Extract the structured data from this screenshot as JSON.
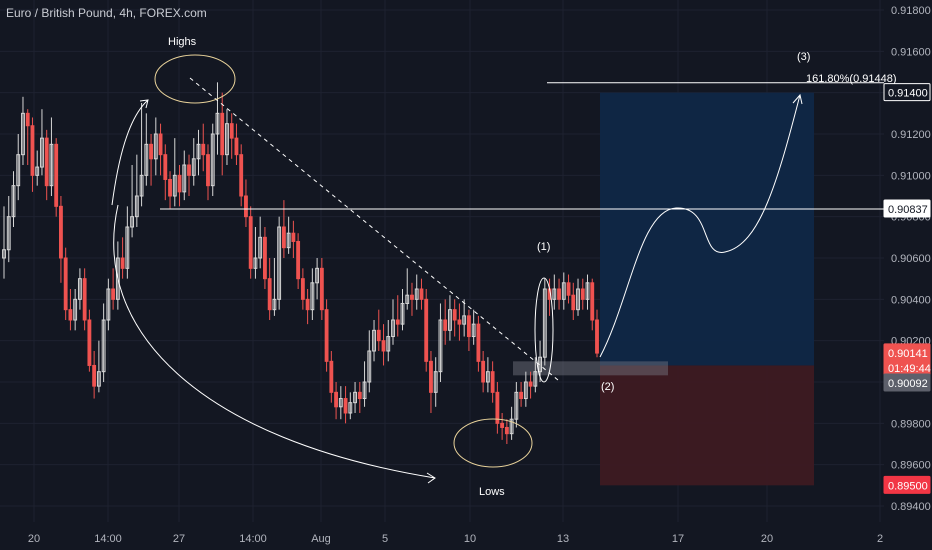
{
  "header": {
    "title": "Euro / British Pound, 4h, FOREX.com"
  },
  "colors": {
    "background": "#131722",
    "grid": "#1e2230",
    "up": "#d6d6d6",
    "down": "#ef5350",
    "target_zone": "#0f2747",
    "stop_zone": "#3d1a22",
    "annotation": "#ffffff",
    "axis_text": "#b2b5be"
  },
  "annotations": {
    "highs": "Highs",
    "lows": "Lows",
    "label1": "(1)",
    "label2": "(2)",
    "label3": "(3)",
    "fib_label": "161.80%(0.91448)"
  },
  "chart_data": {
    "type": "candlestick",
    "symbol": "Euro / British Pound",
    "interval": "4h",
    "source": "FOREX.com",
    "ylim": [
      0.893,
      0.9185
    ],
    "y_ticks": [
      "0.91800",
      "0.91600",
      "0.91400",
      "0.91200",
      "0.91000",
      "0.90800",
      "0.90600",
      "0.90400",
      "0.90200",
      "0.90000",
      "0.89800",
      "0.89600",
      "0.89400"
    ],
    "x_ticks": [
      "20",
      "14:00",
      "27",
      "14:00",
      "Aug",
      "5",
      "10",
      "13",
      "17",
      "20",
      "2"
    ],
    "price_badges": [
      {
        "label": "0.91400",
        "bg": "#131722",
        "border": "#ffffff",
        "fg": "#ffffff",
        "value": 0.914
      },
      {
        "label": "0.90837",
        "bg": "#ffffff",
        "border": "#ffffff",
        "fg": "#131722",
        "value": 0.90837
      },
      {
        "label": "0.90141",
        "bg": "#ef5350",
        "border": "#ef5350",
        "fg": "#ffffff",
        "value": 0.90141
      },
      {
        "label": "01:49:44",
        "bg": "#ef5350",
        "border": "#ef5350",
        "fg": "#ffffff",
        "value": 0.90068
      },
      {
        "label": "0.90092",
        "bg": "#5d606b",
        "border": "#5d606b",
        "fg": "#ffffff",
        "value": 0.89995
      },
      {
        "label": "0.89500",
        "bg": "#f23645",
        "border": "#f23645",
        "fg": "#ffffff",
        "value": 0.895
      }
    ],
    "levels": {
      "resistance": 0.90837,
      "fib_161_8": 0.91448,
      "target": 0.914,
      "entry": 0.90092,
      "stop": 0.895
    },
    "candles": [
      [
        0.906,
        0.9064,
        0.9085,
        0.905
      ],
      [
        0.9064,
        0.908,
        0.909,
        0.9058
      ],
      [
        0.908,
        0.9095,
        0.9102,
        0.9075
      ],
      [
        0.9095,
        0.911,
        0.912,
        0.9088
      ],
      [
        0.911,
        0.913,
        0.9138,
        0.9105
      ],
      [
        0.913,
        0.9124,
        0.9132,
        0.9105
      ],
      [
        0.9124,
        0.91,
        0.9128,
        0.9092
      ],
      [
        0.91,
        0.9104,
        0.9112,
        0.9095
      ],
      [
        0.9104,
        0.9118,
        0.9132,
        0.91
      ],
      [
        0.9118,
        0.9095,
        0.9122,
        0.9088
      ],
      [
        0.9095,
        0.9115,
        0.9128,
        0.909
      ],
      [
        0.9115,
        0.9085,
        0.9118,
        0.908
      ],
      [
        0.9085,
        0.906,
        0.909,
        0.9048
      ],
      [
        0.906,
        0.9035,
        0.9065,
        0.903
      ],
      [
        0.9035,
        0.903,
        0.9045,
        0.9025
      ],
      [
        0.903,
        0.904,
        0.9045,
        0.9025
      ],
      [
        0.904,
        0.905,
        0.9055,
        0.9035
      ],
      [
        0.905,
        0.903,
        0.9055,
        0.9025
      ],
      [
        0.903,
        0.9008,
        0.9035,
        0.9005
      ],
      [
        0.9008,
        0.8998,
        0.9015,
        0.8992
      ],
      [
        0.8998,
        0.9005,
        0.902,
        0.8995
      ],
      [
        0.9005,
        0.903,
        0.9038,
        0.9
      ],
      [
        0.903,
        0.9045,
        0.905,
        0.9025
      ],
      [
        0.9045,
        0.904,
        0.9055,
        0.9035
      ],
      [
        0.904,
        0.906,
        0.9068,
        0.9035
      ],
      [
        0.906,
        0.9055,
        0.907,
        0.905
      ],
      [
        0.9055,
        0.9075,
        0.9085,
        0.905
      ],
      [
        0.9075,
        0.908,
        0.9105,
        0.907
      ],
      [
        0.908,
        0.909,
        0.911,
        0.9075
      ],
      [
        0.909,
        0.91,
        0.9135,
        0.9085
      ],
      [
        0.91,
        0.9115,
        0.913,
        0.9095
      ],
      [
        0.9115,
        0.9108,
        0.912,
        0.9095
      ],
      [
        0.9108,
        0.912,
        0.9128,
        0.91
      ],
      [
        0.912,
        0.911,
        0.9125,
        0.91
      ],
      [
        0.911,
        0.9098,
        0.9115,
        0.9088
      ],
      [
        0.9098,
        0.909,
        0.9102,
        0.9084
      ],
      [
        0.909,
        0.91,
        0.9118,
        0.9085
      ],
      [
        0.91,
        0.9092,
        0.9105,
        0.9085
      ],
      [
        0.9092,
        0.9105,
        0.9112,
        0.9088
      ],
      [
        0.9105,
        0.91,
        0.911,
        0.909
      ],
      [
        0.91,
        0.9108,
        0.9118,
        0.9095
      ],
      [
        0.9108,
        0.9115,
        0.9122,
        0.91
      ],
      [
        0.9115,
        0.911,
        0.9125,
        0.9102
      ],
      [
        0.911,
        0.9095,
        0.9115,
        0.9088
      ],
      [
        0.9095,
        0.912,
        0.9125,
        0.909
      ],
      [
        0.912,
        0.913,
        0.9145,
        0.911
      ],
      [
        0.913,
        0.911,
        0.914,
        0.91
      ],
      [
        0.911,
        0.9125,
        0.9132,
        0.9105
      ],
      [
        0.9125,
        0.9118,
        0.913,
        0.9108
      ],
      [
        0.9118,
        0.911,
        0.9125,
        0.9105
      ],
      [
        0.911,
        0.909,
        0.9115,
        0.9085
      ],
      [
        0.909,
        0.908,
        0.9098,
        0.9075
      ],
      [
        0.908,
        0.9055,
        0.9085,
        0.905
      ],
      [
        0.9055,
        0.906,
        0.9075,
        0.905
      ],
      [
        0.906,
        0.907,
        0.908,
        0.9055
      ],
      [
        0.907,
        0.905,
        0.9075,
        0.9045
      ],
      [
        0.905,
        0.9035,
        0.906,
        0.903
      ],
      [
        0.9035,
        0.904,
        0.906,
        0.9032
      ],
      [
        0.904,
        0.9075,
        0.908,
        0.9035
      ],
      [
        0.9075,
        0.9065,
        0.9088,
        0.906
      ],
      [
        0.9065,
        0.9072,
        0.908,
        0.9062
      ],
      [
        0.9072,
        0.9068,
        0.9078,
        0.906
      ],
      [
        0.9068,
        0.905,
        0.9072,
        0.9045
      ],
      [
        0.905,
        0.904,
        0.9055,
        0.9035
      ],
      [
        0.904,
        0.9035,
        0.9045,
        0.9028
      ],
      [
        0.9035,
        0.9048,
        0.9055,
        0.903
      ],
      [
        0.9048,
        0.9055,
        0.906,
        0.904
      ],
      [
        0.9055,
        0.9035,
        0.906,
        0.903
      ],
      [
        0.9035,
        0.901,
        0.904,
        0.9005
      ],
      [
        0.901,
        0.8995,
        0.9015,
        0.899
      ],
      [
        0.8995,
        0.8988,
        0.9,
        0.8982
      ],
      [
        0.8988,
        0.8992,
        0.8998,
        0.8982
      ],
      [
        0.8992,
        0.8985,
        0.8998,
        0.898
      ],
      [
        0.8985,
        0.899,
        0.8995,
        0.8982
      ],
      [
        0.899,
        0.8995,
        0.9,
        0.8985
      ],
      [
        0.8995,
        0.8992,
        0.9,
        0.8985
      ],
      [
        0.8992,
        0.9,
        0.901,
        0.8988
      ],
      [
        0.9,
        0.9015,
        0.9025,
        0.8995
      ],
      [
        0.9015,
        0.9025,
        0.903,
        0.901
      ],
      [
        0.9025,
        0.902,
        0.9035,
        0.9015
      ],
      [
        0.902,
        0.9015,
        0.9028,
        0.9008
      ],
      [
        0.9015,
        0.9022,
        0.903,
        0.901
      ],
      [
        0.9022,
        0.903,
        0.904,
        0.9018
      ],
      [
        0.903,
        0.9028,
        0.9042,
        0.9022
      ],
      [
        0.9028,
        0.9038,
        0.9045,
        0.9025
      ],
      [
        0.9038,
        0.9042,
        0.9055,
        0.9035
      ],
      [
        0.9042,
        0.904,
        0.9048,
        0.9032
      ],
      [
        0.904,
        0.9045,
        0.9052,
        0.9035
      ],
      [
        0.9045,
        0.904,
        0.905,
        0.9035
      ],
      [
        0.904,
        0.901,
        0.9045,
        0.9005
      ],
      [
        0.901,
        0.8995,
        0.9015,
        0.8985
      ],
      [
        0.8995,
        0.9005,
        0.9012,
        0.8988
      ],
      [
        0.9005,
        0.903,
        0.9038,
        0.9
      ],
      [
        0.903,
        0.9025,
        0.904,
        0.9018
      ],
      [
        0.9025,
        0.9035,
        0.9042,
        0.902
      ],
      [
        0.9035,
        0.903,
        0.904,
        0.9022
      ],
      [
        0.903,
        0.9028,
        0.9038,
        0.902
      ],
      [
        0.9028,
        0.9032,
        0.904,
        0.9022
      ],
      [
        0.9032,
        0.9022,
        0.9035,
        0.9015
      ],
      [
        0.9022,
        0.9028,
        0.9035,
        0.9018
      ],
      [
        0.9028,
        0.901,
        0.9032,
        0.9005
      ],
      [
        0.901,
        0.9,
        0.9015,
        0.8995
      ],
      [
        0.9,
        0.9005,
        0.9012,
        0.8995
      ],
      [
        0.9005,
        0.8995,
        0.901,
        0.899
      ],
      [
        0.8995,
        0.898,
        0.9,
        0.8975
      ],
      [
        0.898,
        0.8978,
        0.8985,
        0.8972
      ],
      [
        0.8978,
        0.8975,
        0.8982,
        0.897
      ],
      [
        0.8975,
        0.8982,
        0.8988,
        0.8972
      ],
      [
        0.8982,
        0.8995,
        0.9,
        0.8978
      ],
      [
        0.8995,
        0.8992,
        0.9,
        0.8988
      ],
      [
        0.8992,
        0.9,
        0.9005,
        0.8988
      ],
      [
        0.9,
        0.8998,
        0.9005,
        0.8992
      ],
      [
        0.8998,
        0.9005,
        0.9012,
        0.8995
      ],
      [
        0.9005,
        0.9012,
        0.902,
        0.9
      ],
      [
        0.9012,
        0.9045,
        0.905,
        0.9008
      ],
      [
        0.9045,
        0.904,
        0.905,
        0.9032
      ],
      [
        0.904,
        0.9045,
        0.9052,
        0.9035
      ],
      [
        0.9045,
        0.904,
        0.905,
        0.9035
      ],
      [
        0.904,
        0.9048,
        0.9053,
        0.9035
      ],
      [
        0.9048,
        0.9042,
        0.9052,
        0.9038
      ],
      [
        0.9042,
        0.9035,
        0.9048,
        0.903
      ],
      [
        0.9035,
        0.9045,
        0.905,
        0.9032
      ],
      [
        0.9045,
        0.904,
        0.905,
        0.9035
      ],
      [
        0.904,
        0.9048,
        0.9052,
        0.9035
      ],
      [
        0.9048,
        0.903,
        0.905,
        0.9025
      ],
      [
        0.903,
        0.9014,
        0.9035,
        0.9012
      ]
    ]
  }
}
